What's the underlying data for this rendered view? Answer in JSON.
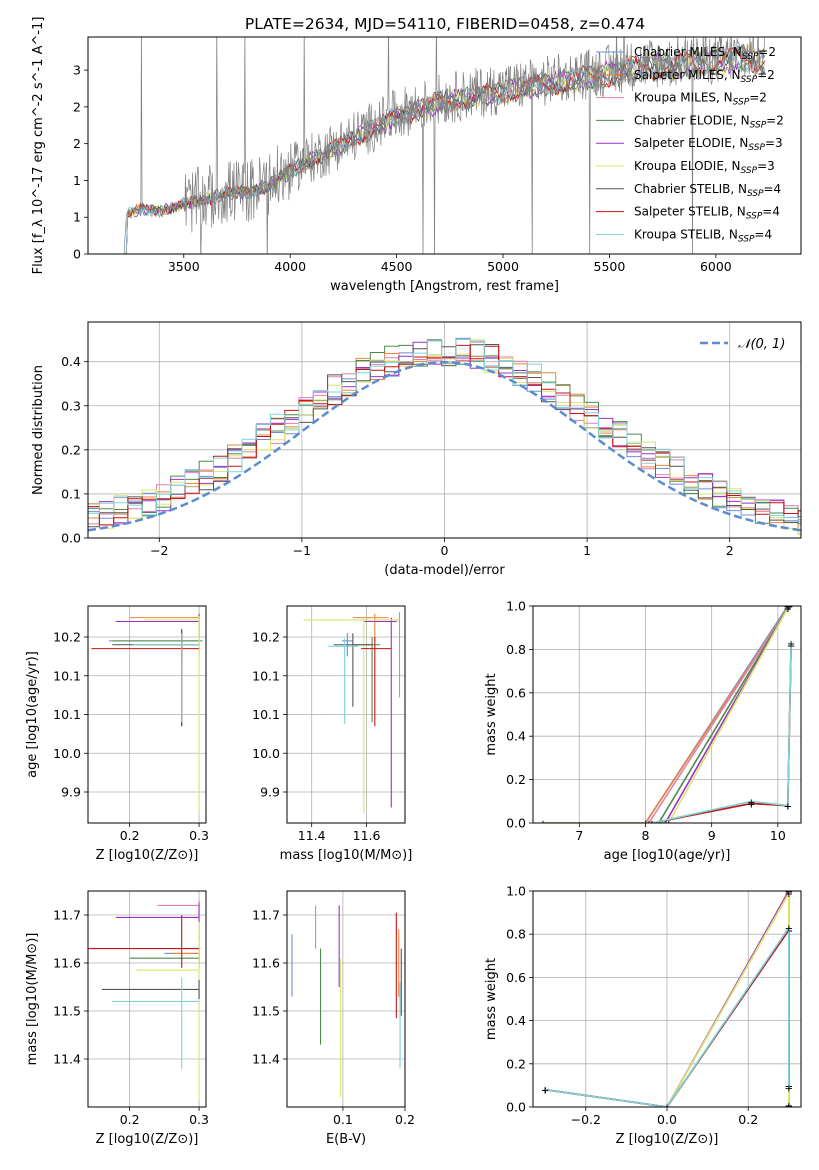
{
  "figure": {
    "title": "PLATE=2634, MJD=54110, FIBERID=0458, z=0.474"
  },
  "models": [
    {
      "name": "Chabrier MILES",
      "nssp": "2",
      "color": "#6a8fd8"
    },
    {
      "name": "Salpeter MILES",
      "nssp": "2",
      "color": "#e8853b"
    },
    {
      "name": "Kroupa MILES",
      "nssp": "2",
      "color": "#e080b0"
    },
    {
      "name": "Chabrier ELODIE",
      "nssp": "2",
      "color": "#4c8a4c"
    },
    {
      "name": "Salpeter ELODIE",
      "nssp": "3",
      "color": "#9b30c8"
    },
    {
      "name": "Kroupa ELODIE",
      "nssp": "3",
      "color": "#d9e66a"
    },
    {
      "name": "Chabrier STELIB",
      "nssp": "4",
      "color": "#555555"
    },
    {
      "name": "Salpeter STELIB",
      "nssp": "4",
      "color": "#cc1111"
    },
    {
      "name": "Kroupa STELIB",
      "nssp": "4",
      "color": "#7fd3d8"
    }
  ],
  "chart_data": [
    {
      "id": "spectrum",
      "type": "line",
      "xlabel": "wavelength [Angstrom, rest frame]",
      "ylabel": "Flux [f_λ 10^-17 erg cm^-2 s^-1 A^-1]",
      "xlim": [
        3050,
        6400
      ],
      "ylim": [
        0,
        2.95
      ],
      "xticks": [
        3500,
        4000,
        4500,
        5000,
        5500,
        6000
      ],
      "yticks": [
        0.0,
        0.5,
        1.0,
        1.5,
        2.0,
        2.5
      ],
      "data_color": "#808080",
      "data_x_range": [
        3220,
        6230
      ],
      "data_anchors": [
        [
          3220,
          0.0
        ],
        [
          3230,
          0.55
        ],
        [
          3300,
          0.62
        ],
        [
          3400,
          0.6
        ],
        [
          3500,
          0.7
        ],
        [
          3600,
          0.75
        ],
        [
          3700,
          0.85
        ],
        [
          3800,
          0.85
        ],
        [
          3900,
          0.95
        ],
        [
          4000,
          1.15
        ],
        [
          4100,
          1.3
        ],
        [
          4200,
          1.45
        ],
        [
          4300,
          1.6
        ],
        [
          4400,
          1.75
        ],
        [
          4500,
          1.9
        ],
        [
          4600,
          2.0
        ],
        [
          4700,
          2.1
        ],
        [
          4800,
          2.15
        ],
        [
          4900,
          2.2
        ],
        [
          5000,
          2.25
        ],
        [
          5100,
          2.3
        ],
        [
          5200,
          2.35
        ],
        [
          5300,
          2.4
        ],
        [
          5400,
          2.45
        ],
        [
          5500,
          2.5
        ],
        [
          5600,
          2.55
        ],
        [
          5700,
          2.6
        ],
        [
          5800,
          2.6
        ],
        [
          5900,
          2.65
        ],
        [
          6000,
          2.65
        ],
        [
          6100,
          2.7
        ],
        [
          6230,
          2.7
        ]
      ],
      "model_x_range": [
        3230,
        6230
      ],
      "legend_position": "upper right"
    },
    {
      "id": "residuals",
      "type": "step",
      "xlabel": "(data-model)/error",
      "ylabel": "Normed distribution",
      "xlim": [
        -2.5,
        2.5
      ],
      "ylim": [
        0,
        0.49
      ],
      "xticks": [
        -2,
        -1,
        0,
        1,
        2
      ],
      "yticks": [
        0.0,
        0.1,
        0.2,
        0.3,
        0.4
      ],
      "bin_width": 0.1,
      "gaussian_label": "𝒩(0, 1)",
      "gaussian_color": "#5b8bd0",
      "legend_position": "upper right",
      "grid": true
    },
    {
      "id": "age_vs_Z",
      "type": "errorbar",
      "xlabel": "Z [log10(Z/Z⊙)]",
      "ylabel": "age [log10(age/yr)]",
      "xlim": [
        0.14,
        0.31
      ],
      "ylim": [
        9.91,
        10.19
      ],
      "xticks": [
        0.2,
        0.3
      ],
      "yticks": [
        9.95,
        10.0,
        10.05,
        10.1,
        10.15
      ],
      "points": [
        {
          "x": 0.3,
          "y": 10.145,
          "xerr": [
            0.13,
            0
          ],
          "yerr": [
            0.02,
            0.01
          ]
        },
        {
          "x": 0.3,
          "y": 10.175,
          "xerr": [
            0.1,
            0
          ],
          "yerr": [
            0.02,
            0.005
          ]
        },
        {
          "x": 0.3,
          "y": 10.17,
          "xerr": [
            0.09,
            0
          ],
          "yerr": [
            0.03,
            0.01
          ]
        },
        {
          "x": 0.275,
          "y": 10.145,
          "xerr": [
            0.1,
            0.03
          ],
          "yerr": [
            0.11,
            0.015
          ]
        },
        {
          "x": 0.3,
          "y": 10.17,
          "xerr": [
            0.12,
            0
          ],
          "yerr": [
            0.02,
            0.01
          ]
        },
        {
          "x": 0.3,
          "y": 10.172,
          "xerr": [
            0.08,
            0
          ],
          "yerr": [
            0.25,
            0.005
          ]
        },
        {
          "x": 0.275,
          "y": 10.14,
          "xerr": [
            0.1,
            0.025
          ],
          "yerr": [
            0.02,
            0.02
          ]
        },
        {
          "x": 0.275,
          "y": 10.135,
          "xerr": [
            0.13,
            0.025
          ],
          "yerr": [
            0.1,
            0.02
          ]
        },
        {
          "x": 0.275,
          "y": 10.14,
          "xerr": [
            0.07,
            0.025
          ],
          "yerr": [
            0.1,
            0.015
          ]
        }
      ],
      "grid": true
    },
    {
      "id": "age_vs_mass",
      "type": "errorbar",
      "xlabel": "mass [log10(M/M⊙)]",
      "ylabel": "",
      "xlim": [
        11.31,
        11.74
      ],
      "ylim": [
        9.91,
        10.19
      ],
      "xticks": [
        11.4,
        11.6
      ],
      "yticks": [
        9.95,
        10.0,
        10.05,
        10.1,
        10.15
      ],
      "points": [
        {
          "x": 11.53,
          "y": 10.145,
          "xerr": [
            0.02,
            0.02
          ],
          "yerr": [
            0.02,
            0.01
          ]
        },
        {
          "x": 11.63,
          "y": 10.175,
          "xerr": [
            0.08,
            0.05
          ],
          "yerr": [
            0.03,
            0.005
          ]
        },
        {
          "x": 11.72,
          "y": 10.172,
          "xerr": [
            0.08,
            0
          ],
          "yerr": [
            0.1,
            0.01
          ]
        },
        {
          "x": 11.62,
          "y": 10.14,
          "xerr": [
            0.07,
            0.03
          ],
          "yerr": [
            0.1,
            0.01
          ]
        },
        {
          "x": 11.69,
          "y": 10.17,
          "xerr": [
            0.1,
            0.02
          ],
          "yerr": [
            0.24,
            0.005
          ]
        },
        {
          "x": 11.59,
          "y": 10.172,
          "xerr": [
            0.22,
            0.13
          ],
          "yerr": [
            0.25,
            0.005
          ]
        },
        {
          "x": 11.55,
          "y": 10.14,
          "xerr": [
            0.07,
            0.07
          ],
          "yerr": [
            0.08,
            0.015
          ]
        },
        {
          "x": 11.63,
          "y": 10.135,
          "xerr": [
            0.05,
            0.06
          ],
          "yerr": [
            0.1,
            0.015
          ]
        },
        {
          "x": 11.52,
          "y": 10.138,
          "xerr": [
            0.06,
            0.05
          ],
          "yerr": [
            0.1,
            0.01
          ]
        }
      ],
      "grid": true
    },
    {
      "id": "massweight_vs_age",
      "type": "line",
      "xlabel": "age [log10(age/yr)]",
      "ylabel": "mass weight",
      "xlim": [
        6.3,
        10.35
      ],
      "ylim": [
        0,
        1.0
      ],
      "xticks": [
        7,
        8,
        9,
        10
      ],
      "yticks": [
        0.0,
        0.2,
        0.4,
        0.6,
        0.8,
        1.0
      ],
      "series": [
        {
          "model": 0,
          "x": [
            8.0,
            10.15
          ],
          "y": [
            0.0,
            1.0
          ]
        },
        {
          "model": 1,
          "x": [
            8.0,
            10.17
          ],
          "y": [
            0.0,
            1.0
          ]
        },
        {
          "model": 2,
          "x": [
            8.05,
            10.15
          ],
          "y": [
            0.0,
            0.99
          ]
        },
        {
          "model": 3,
          "x": [
            8.2,
            10.15
          ],
          "y": [
            0.0,
            0.99
          ]
        },
        {
          "model": 4,
          "x": [
            6.45,
            8.3,
            10.17
          ],
          "y": [
            0.0,
            0.0,
            1.0
          ]
        },
        {
          "model": 5,
          "x": [
            6.45,
            8.35,
            10.15
          ],
          "y": [
            0.0,
            0.0,
            0.99
          ]
        },
        {
          "model": 6,
          "x": [
            8.1,
            9.6,
            10.15,
            10.2
          ],
          "y": [
            0.0,
            0.09,
            0.08,
            0.82
          ]
        },
        {
          "model": 7,
          "x": [
            8.1,
            9.6,
            10.15,
            10.2
          ],
          "y": [
            0.0,
            0.09,
            0.08,
            0.82
          ]
        },
        {
          "model": 8,
          "x": [
            8.1,
            9.6,
            10.15,
            10.2
          ],
          "y": [
            0.0,
            0.1,
            0.08,
            0.83
          ]
        }
      ],
      "grid": true
    },
    {
      "id": "mass_vs_Z",
      "type": "errorbar",
      "xlabel": "Z [log10(Z/Z⊙)]",
      "ylabel": "mass [log10(M/M⊙)]",
      "xlim": [
        0.14,
        0.31
      ],
      "ylim": [
        11.3,
        11.75
      ],
      "xticks": [
        0.2,
        0.3
      ],
      "yticks": [
        11.4,
        11.5,
        11.6,
        11.7
      ],
      "points": [
        {
          "x": 0.3,
          "y": 11.62,
          "xerr": [
            0.05,
            0
          ],
          "yerr": [
            0.02,
            0.02
          ]
        },
        {
          "x": 0.3,
          "y": 11.62,
          "xerr": [
            0.04,
            0
          ],
          "yerr": [
            0.02,
            0.02
          ]
        },
        {
          "x": 0.3,
          "y": 11.72,
          "xerr": [
            0.06,
            0
          ],
          "yerr": [
            0.02,
            0.01
          ]
        },
        {
          "x": 0.3,
          "y": 11.61,
          "xerr": [
            0.1,
            0
          ],
          "yerr": [
            0.02,
            0.02
          ]
        },
        {
          "x": 0.3,
          "y": 11.695,
          "xerr": [
            0.12,
            0
          ],
          "yerr": [
            0.05,
            0.03
          ]
        },
        {
          "x": 0.3,
          "y": 11.585,
          "xerr": [
            0.09,
            0
          ],
          "yerr": [
            0.27,
            0.1
          ]
        },
        {
          "x": 0.3,
          "y": 11.545,
          "xerr": [
            0.14,
            0
          ],
          "yerr": [
            0.02,
            0.02
          ]
        },
        {
          "x": 0.275,
          "y": 11.63,
          "xerr": [
            0.14,
            0.025
          ],
          "yerr": [
            0.04,
            0.07
          ]
        },
        {
          "x": 0.275,
          "y": 11.52,
          "xerr": [
            0.1,
            0.025
          ],
          "yerr": [
            0.14,
            0.05
          ]
        }
      ],
      "grid": true
    },
    {
      "id": "mass_vs_ebv",
      "type": "errorbar",
      "xlabel": "E(B-V)",
      "ylabel": "",
      "xlim": [
        0.105,
        0.2
      ],
      "ylim": [
        11.3,
        11.75
      ],
      "xticks": [
        0.15,
        0.2
      ],
      "yticks": [
        11.4,
        11.5,
        11.6,
        11.7
      ],
      "points": [
        {
          "x": 0.109,
          "y": 11.595,
          "xerr": [
            0,
            0
          ],
          "yerr": [
            0.065,
            0.065
          ]
        },
        {
          "x": 0.195,
          "y": 11.6,
          "xerr": [
            0,
            0
          ],
          "yerr": [
            0.07,
            0.07
          ]
        },
        {
          "x": 0.128,
          "y": 11.69,
          "xerr": [
            0,
            0
          ],
          "yerr": [
            0.06,
            0.03
          ]
        },
        {
          "x": 0.132,
          "y": 11.53,
          "xerr": [
            0,
            0
          ],
          "yerr": [
            0.1,
            0.1
          ]
        },
        {
          "x": 0.147,
          "y": 11.65,
          "xerr": [
            0,
            0
          ],
          "yerr": [
            0.1,
            0.07
          ]
        },
        {
          "x": 0.148,
          "y": 11.47,
          "xerr": [
            0,
            0
          ],
          "yerr": [
            0.15,
            0.14
          ]
        },
        {
          "x": 0.197,
          "y": 11.56,
          "xerr": [
            0,
            0
          ],
          "yerr": [
            0.07,
            0.07
          ]
        },
        {
          "x": 0.193,
          "y": 11.595,
          "xerr": [
            0,
            0
          ],
          "yerr": [
            0.11,
            0.11
          ]
        },
        {
          "x": 0.196,
          "y": 11.47,
          "xerr": [
            0,
            0
          ],
          "yerr": [
            0.09,
            0.09
          ]
        }
      ],
      "grid": true
    },
    {
      "id": "massweight_vs_Z",
      "type": "line",
      "xlabel": "Z [log10(Z/Z⊙)]",
      "ylabel": "mass weight",
      "xlim": [
        -0.33,
        0.33
      ],
      "ylim": [
        0,
        1.0
      ],
      "xticks": [
        -0.2,
        0.0,
        0.2
      ],
      "yticks": [
        0.0,
        0.2,
        0.4,
        0.6,
        0.8,
        1.0
      ],
      "series": [
        {
          "model": 0,
          "x": [
            -0.3,
            0.0,
            0.3,
            0.3
          ],
          "y": [
            0.08,
            0.0,
            0.82,
            0.1
          ]
        },
        {
          "model": 1,
          "x": [
            0.0,
            0.3,
            0.3
          ],
          "y": [
            0.0,
            1.0,
            0.0
          ]
        },
        {
          "model": 2,
          "x": [
            0.0,
            0.3,
            0.3
          ],
          "y": [
            0.0,
            0.99,
            0.01
          ]
        },
        {
          "model": 3,
          "x": [
            -0.3,
            0.0,
            0.3,
            0.3
          ],
          "y": [
            0.08,
            0.0,
            0.82,
            0.1
          ]
        },
        {
          "model": 4,
          "x": [
            0.0,
            0.3,
            0.3
          ],
          "y": [
            0.0,
            1.0,
            0.0
          ]
        },
        {
          "model": 5,
          "x": [
            0.0,
            0.3,
            0.3
          ],
          "y": [
            0.0,
            0.99,
            0.01
          ]
        },
        {
          "model": 6,
          "x": [
            -0.3,
            0.0,
            0.3,
            0.3
          ],
          "y": [
            0.08,
            0.0,
            0.82,
            0.1
          ]
        },
        {
          "model": 7,
          "x": [
            -0.3,
            0.0,
            0.3,
            0.3
          ],
          "y": [
            0.08,
            0.0,
            0.82,
            0.1
          ]
        },
        {
          "model": 8,
          "x": [
            -0.3,
            0.0,
            0.3,
            0.3
          ],
          "y": [
            0.08,
            0.0,
            0.83,
            0.09
          ]
        }
      ],
      "grid": true
    }
  ]
}
